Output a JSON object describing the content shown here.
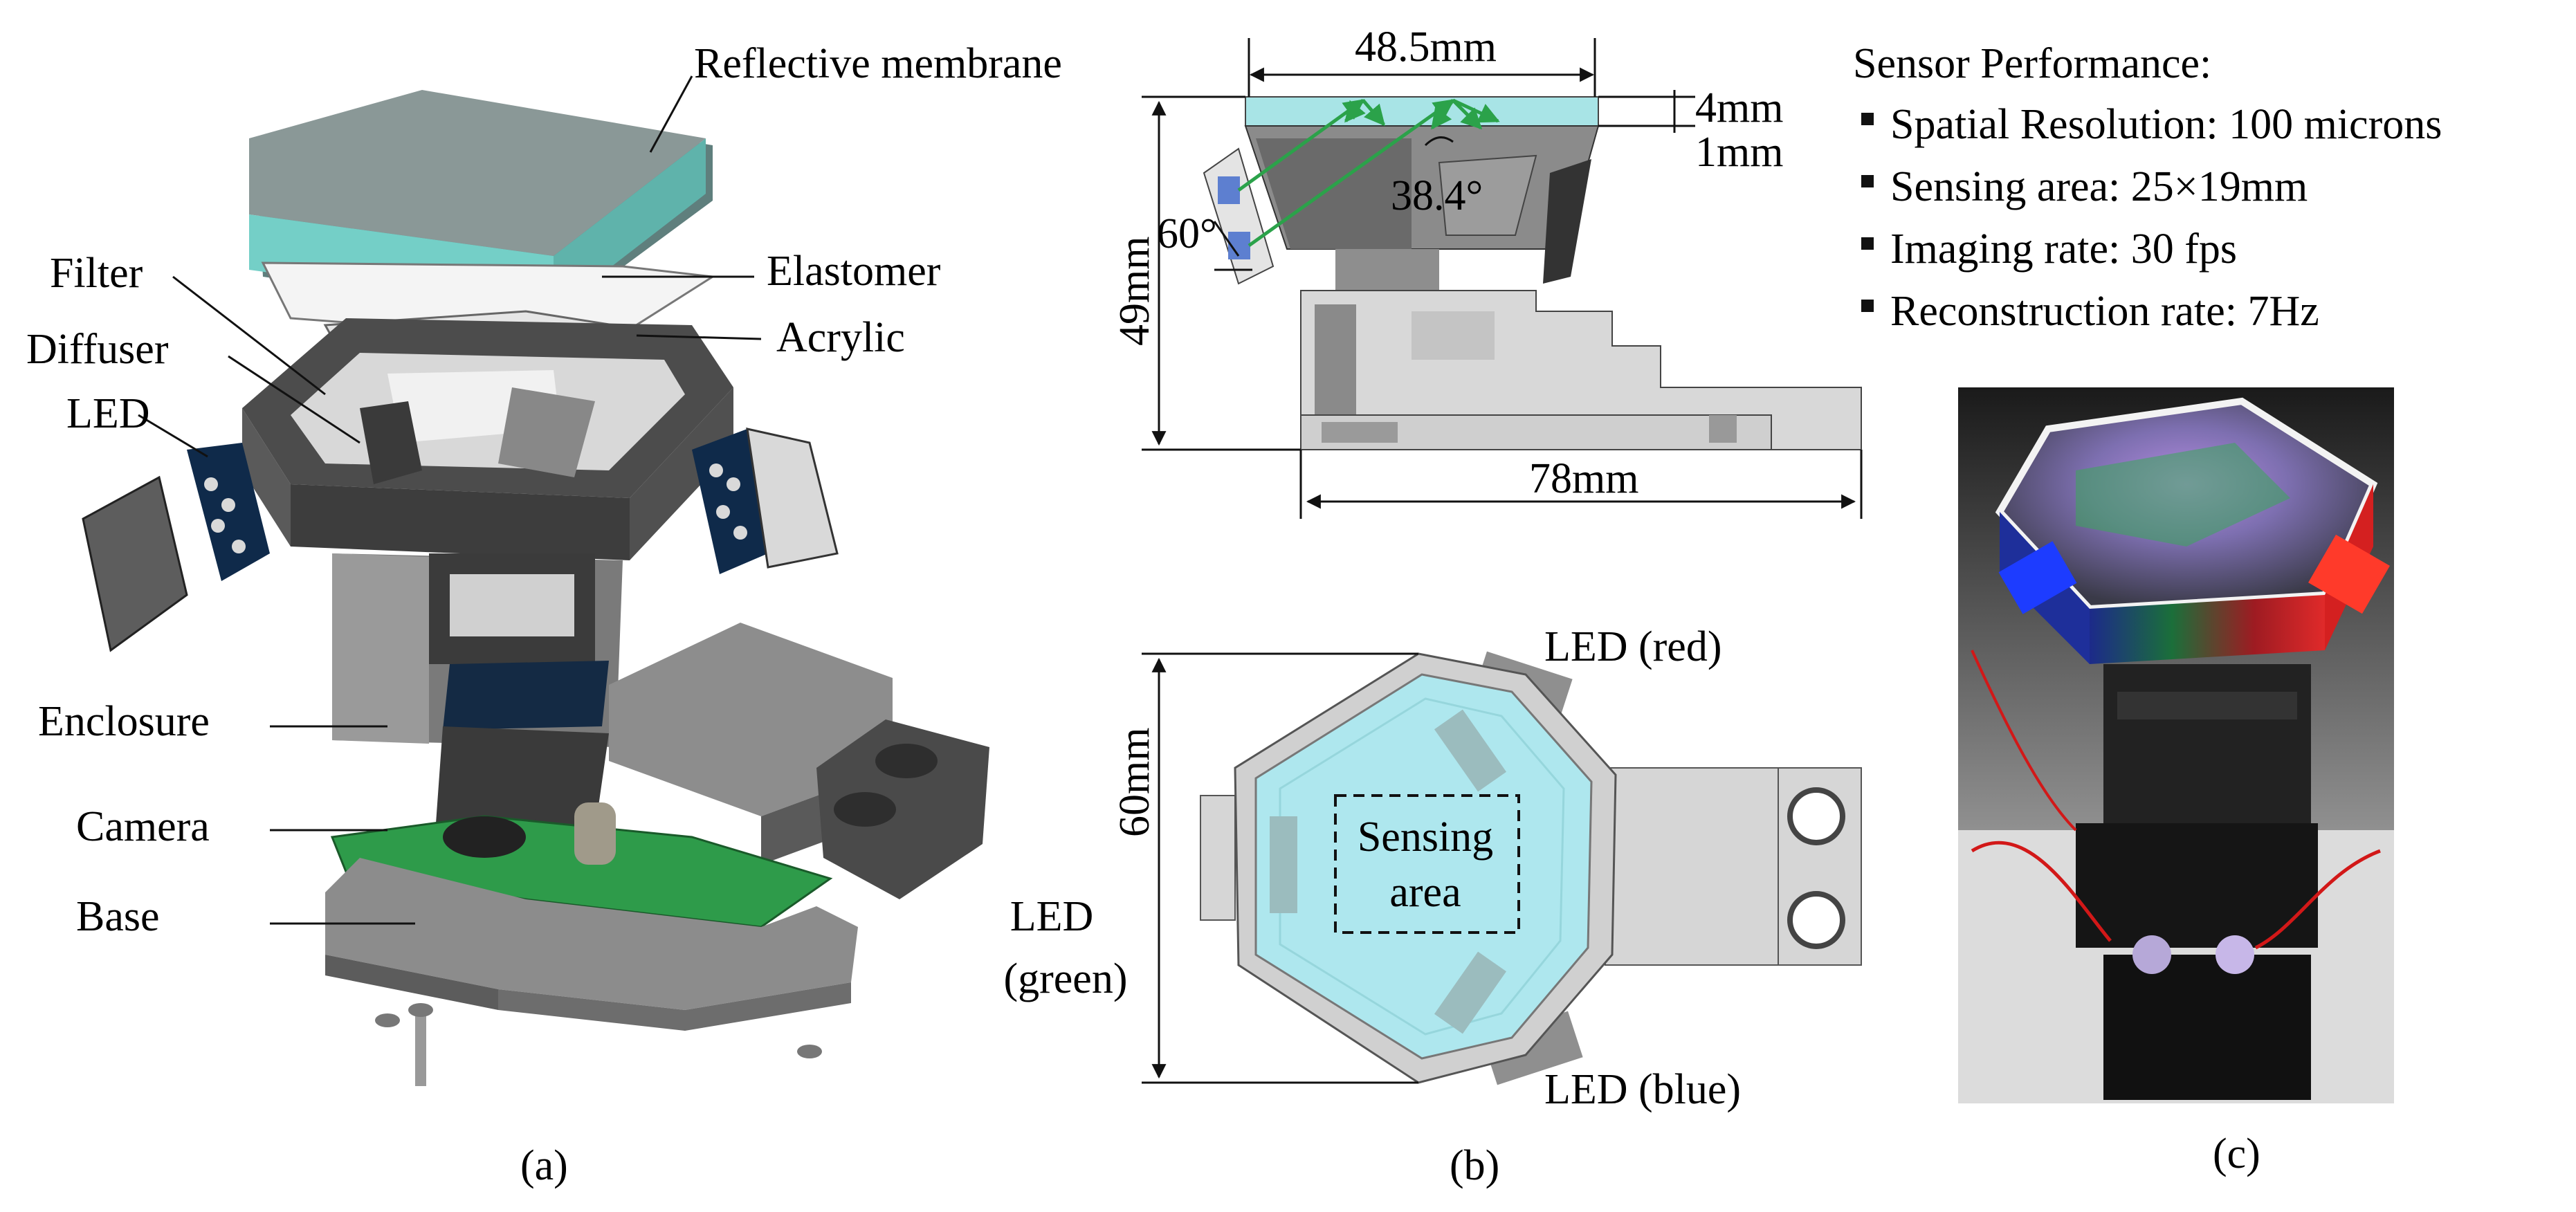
{
  "panel_a": {
    "labels": {
      "reflective_membrane": "Reflective membrane",
      "filter": "Filter",
      "diffuser": "Diffuser",
      "led": "LED",
      "elastomer": "Elastomer",
      "acrylic": "Acrylic",
      "enclosure": "Enclosure",
      "camera": "Camera",
      "base": "Base"
    },
    "caption": "(a)"
  },
  "panel_b": {
    "side_view": {
      "width_top": "48.5mm",
      "membrane_thickness": "4mm",
      "gap": "1mm",
      "height": "49mm",
      "angle_led": "60°",
      "angle_light": "38.4°",
      "width_total": "78mm"
    },
    "top_view": {
      "size": "60mm",
      "led_red": "LED (red)",
      "led_blue": "LED (blue)",
      "led_green_line1": "LED",
      "led_green_line2": "(green)",
      "sensing_line1": "Sensing",
      "sensing_line2": "area"
    },
    "caption": "(b)"
  },
  "panel_c": {
    "performance": {
      "title": "Sensor Performance:",
      "items": [
        "Spatial Resolution: 100 microns",
        "Sensing area: 25×19mm",
        "Imaging rate: 30 fps",
        "Reconstruction rate: 7Hz"
      ]
    },
    "caption": "(c)"
  },
  "colors": {
    "membrane": "#8fc9c4",
    "pcb_green": "#2e9b4a",
    "light_ray": "#2ba24a",
    "sensing_fill": "#aee7ee",
    "led_blue": "#2a4bd6",
    "led_red": "#e3262a"
  }
}
